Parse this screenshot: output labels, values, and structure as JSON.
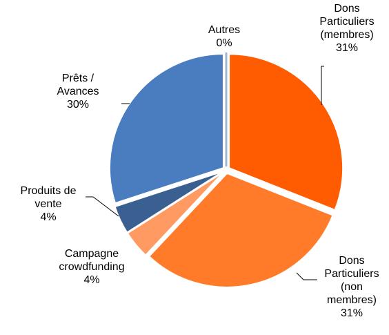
{
  "chart_data": {
    "type": "pie",
    "categories": [
      "Dons\nParticuliers\n(membres)",
      "Dons\nParticuliers\n(non\nmembres)",
      "Campagne\ncrowdfunding",
      "Produits de\nvente",
      "Prêts /\nAvances",
      "Autres"
    ],
    "values": [
      31,
      31,
      4,
      4,
      30,
      0
    ],
    "value_labels": [
      "31%",
      "31%",
      "4%",
      "4%",
      "30%",
      "0%"
    ],
    "colors": [
      "#ff5b00",
      "#ff7b2a",
      "#ff9a62",
      "#3a5f91",
      "#4a7cc0",
      "#9fb4d6"
    ]
  }
}
